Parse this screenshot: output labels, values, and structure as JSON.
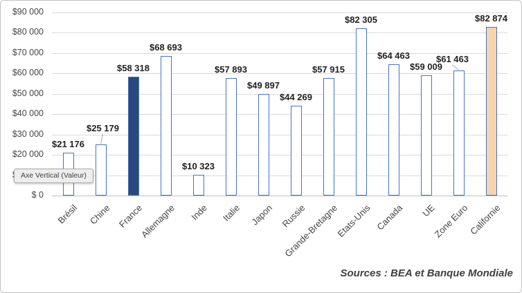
{
  "tooltip": {
    "text": "Axe Vertical (Valeur)"
  },
  "source_note": "Sources : BEA et Banque Mondiale",
  "chart_data": {
    "type": "bar",
    "title": "",
    "xlabel": "",
    "ylabel": "",
    "categories": [
      "Brésil",
      "Chine",
      "France",
      "Allemagne",
      "Inde",
      "Italie",
      "Japon",
      "Russie",
      "Grande-Bretagne",
      "Etats-Unis",
      "Canada",
      "UE",
      "Zone Euro",
      "Californie"
    ],
    "values": [
      21176,
      25179,
      58318,
      68693,
      10323,
      57893,
      49897,
      44269,
      57915,
      82305,
      64463,
      59009,
      61463,
      82874
    ],
    "data_labels": [
      "$21 176",
      "$25 179",
      "$58 318",
      "$68 693",
      "$10 323",
      "$57 893",
      "$49 897",
      "$44 269",
      "$57 915",
      "$82 305",
      "$64 463",
      "$59 009",
      "$61 463",
      "$82 874"
    ],
    "ylim": [
      0,
      90000
    ],
    "ytick_interval": 10000,
    "ytick_labels": [
      "$ 0",
      "$10 000",
      "$20 000",
      "$30 000",
      "$40 000",
      "$50 000",
      "$60 000",
      "$70 000",
      "$80 000",
      "$90 000"
    ],
    "grid": true,
    "legend": "none",
    "label_callouts": [
      "Chine",
      "Zone Euro"
    ],
    "colors": {
      "bar_fill_default": "#FFFFFF",
      "bar_border": "#4472C4",
      "bar_fill_france": "#2A487A",
      "bar_fill_californie": "#F6D5AD",
      "gridline": "#D9D9D9",
      "axis_text": "#444444",
      "data_label_text": "#1F1F1F",
      "leader_line": "#A6A6A6"
    },
    "highlighted_bars": {
      "France": "#2A487A",
      "Californie": "#F6D5AD"
    }
  }
}
